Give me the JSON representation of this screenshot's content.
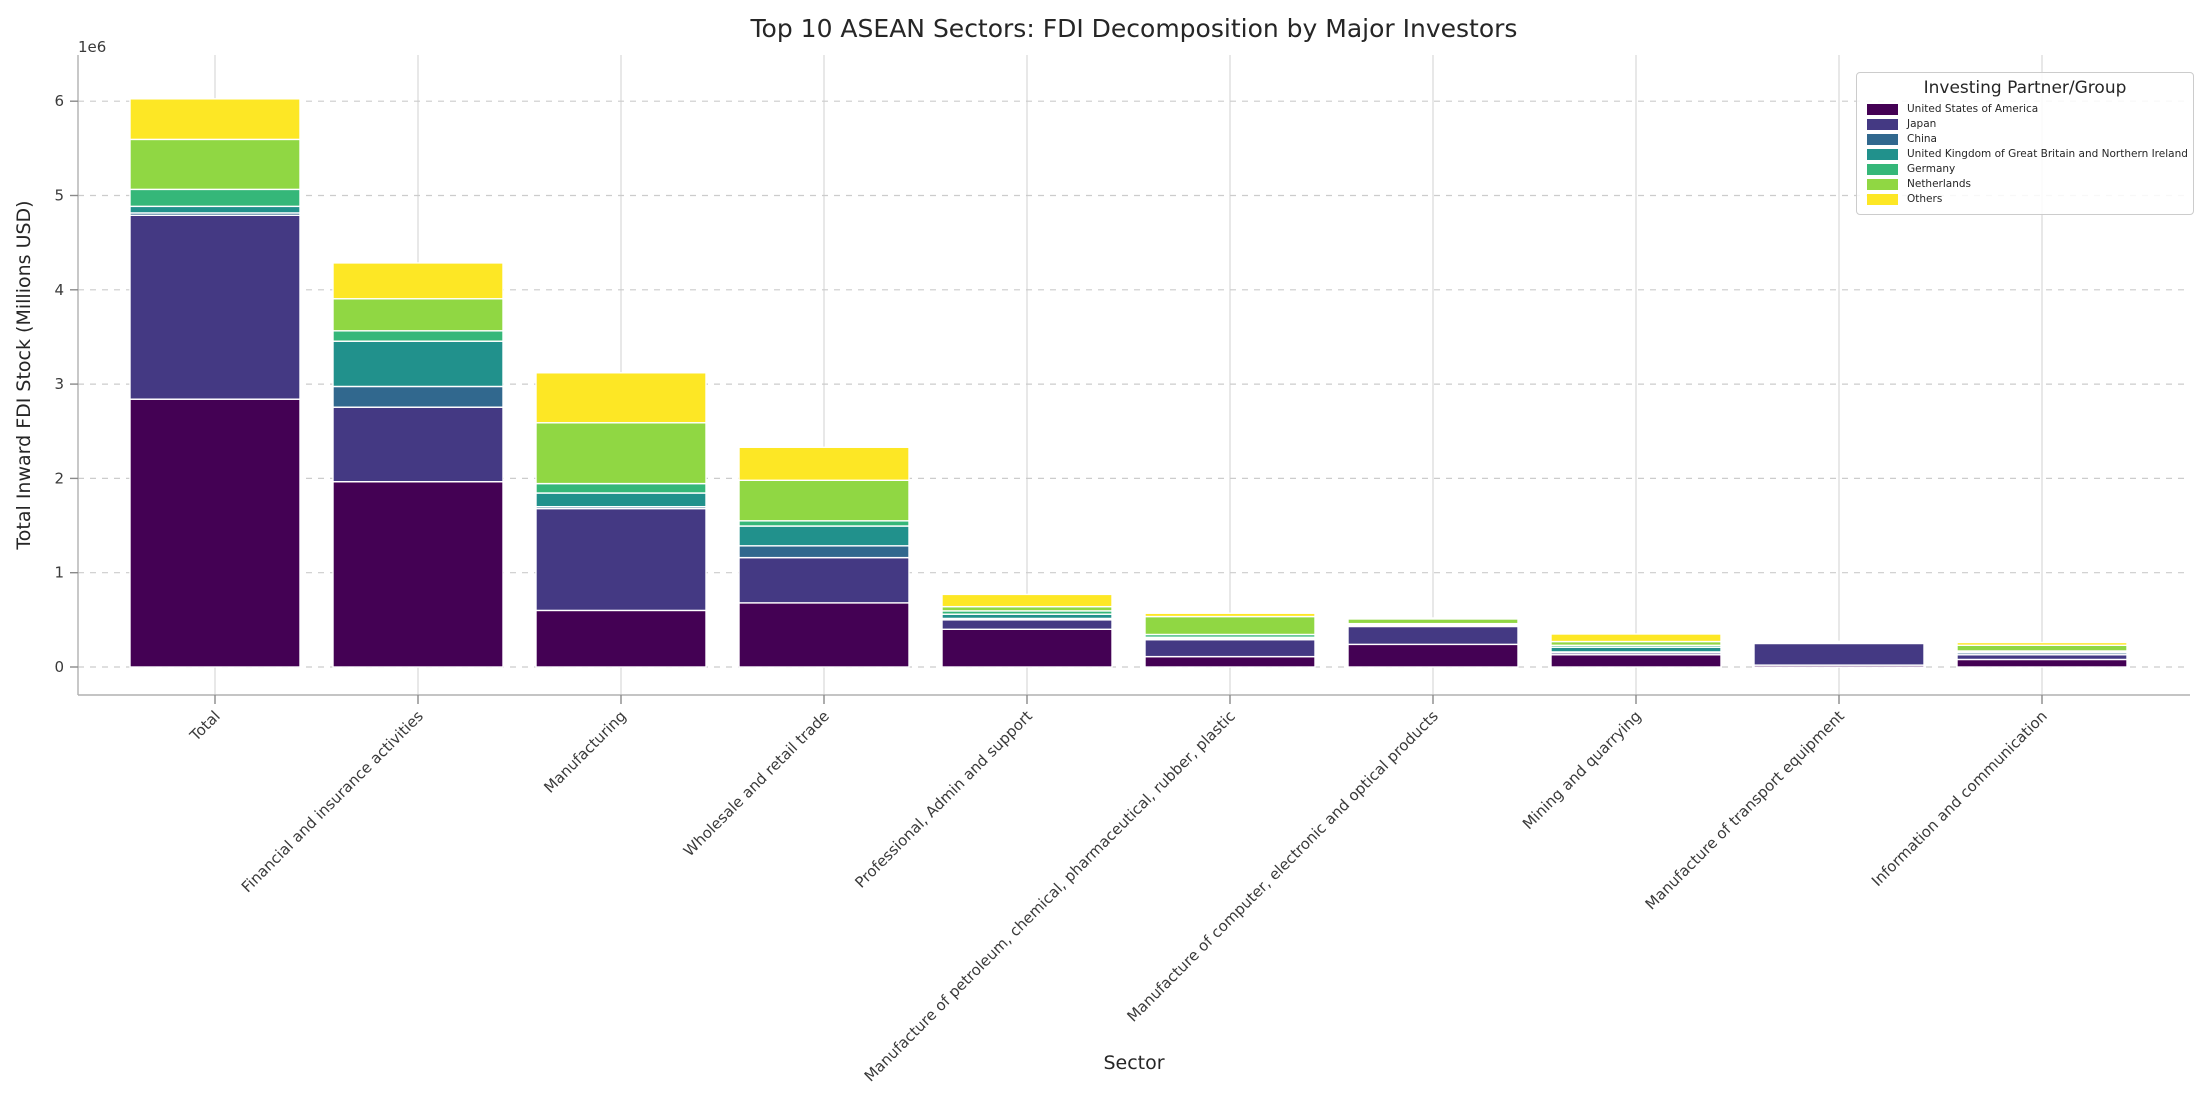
{
  "figure": {
    "title": "Top 10 ASEAN Sectors: FDI Decomposition by Major Investors",
    "xlabel": "Sector",
    "ylabel": "Total Inward FDI Stock (Millions USD)",
    "offset_text": "1e6"
  },
  "legend": {
    "title": "Investing Partner/Group"
  },
  "chart_data": {
    "type": "bar",
    "stacked": true,
    "title": "Top 10 ASEAN Sectors: FDI Decomposition by Major Investors",
    "xlabel": "Sector",
    "ylabel": "Total Inward FDI Stock (Millions USD)",
    "axis_offset_text": "1e6",
    "grid": true,
    "legend_position": "upper right",
    "legend_title": "Investing Partner/Group",
    "bar_edge_color": "#ffffff",
    "ylim": [
      0,
      6300000
    ],
    "yticks": {
      "values": [
        0,
        1000000,
        2000000,
        3000000,
        4000000,
        5000000,
        6000000
      ],
      "labels": [
        "0",
        "1",
        "2",
        "3",
        "4",
        "5",
        "6"
      ]
    },
    "categories": [
      "Total",
      "Financial and insurance activities",
      "Manufacturing",
      "Wholesale and retail trade",
      "Professional, Admin and support",
      "Manufacture of petroleum, chemical, pharmaceutical, rubber, plastic",
      "Manufacture of computer, electronic and optical products",
      "Mining and quarrying",
      "Manufacture of transport equipment",
      "Information and communication"
    ],
    "series": [
      {
        "name": "United States of America",
        "color": "#440154",
        "values": [
          2840000,
          1965000,
          600000,
          680000,
          400000,
          110000,
          240000,
          130000,
          20000,
          80000
        ]
      },
      {
        "name": "Japan",
        "color": "#443983",
        "values": [
          1950000,
          790000,
          1080000,
          480000,
          100000,
          180000,
          190000,
          20000,
          230000,
          50000
        ]
      },
      {
        "name": "China",
        "color": "#31688e",
        "values": [
          25000,
          220000,
          20000,
          125000,
          15000,
          10000,
          10000,
          10000,
          5000,
          20000
        ]
      },
      {
        "name": "United Kingdom of Great Britain and Northern Ireland",
        "color": "#21918c",
        "values": [
          70000,
          480000,
          145000,
          210000,
          45000,
          15000,
          10000,
          50000,
          3000,
          10000
        ]
      },
      {
        "name": "Germany",
        "color": "#35b779",
        "values": [
          180000,
          110000,
          100000,
          55000,
          35000,
          30000,
          10000,
          20000,
          4000,
          10000
        ]
      },
      {
        "name": "Netherlands",
        "color": "#90d743",
        "values": [
          530000,
          340000,
          645000,
          430000,
          45000,
          190000,
          50000,
          40000,
          5000,
          60000
        ]
      },
      {
        "name": "Others",
        "color": "#fde725",
        "values": [
          430000,
          380000,
          530000,
          350000,
          130000,
          35000,
          10000,
          80000,
          5000,
          30000
        ]
      }
    ]
  }
}
